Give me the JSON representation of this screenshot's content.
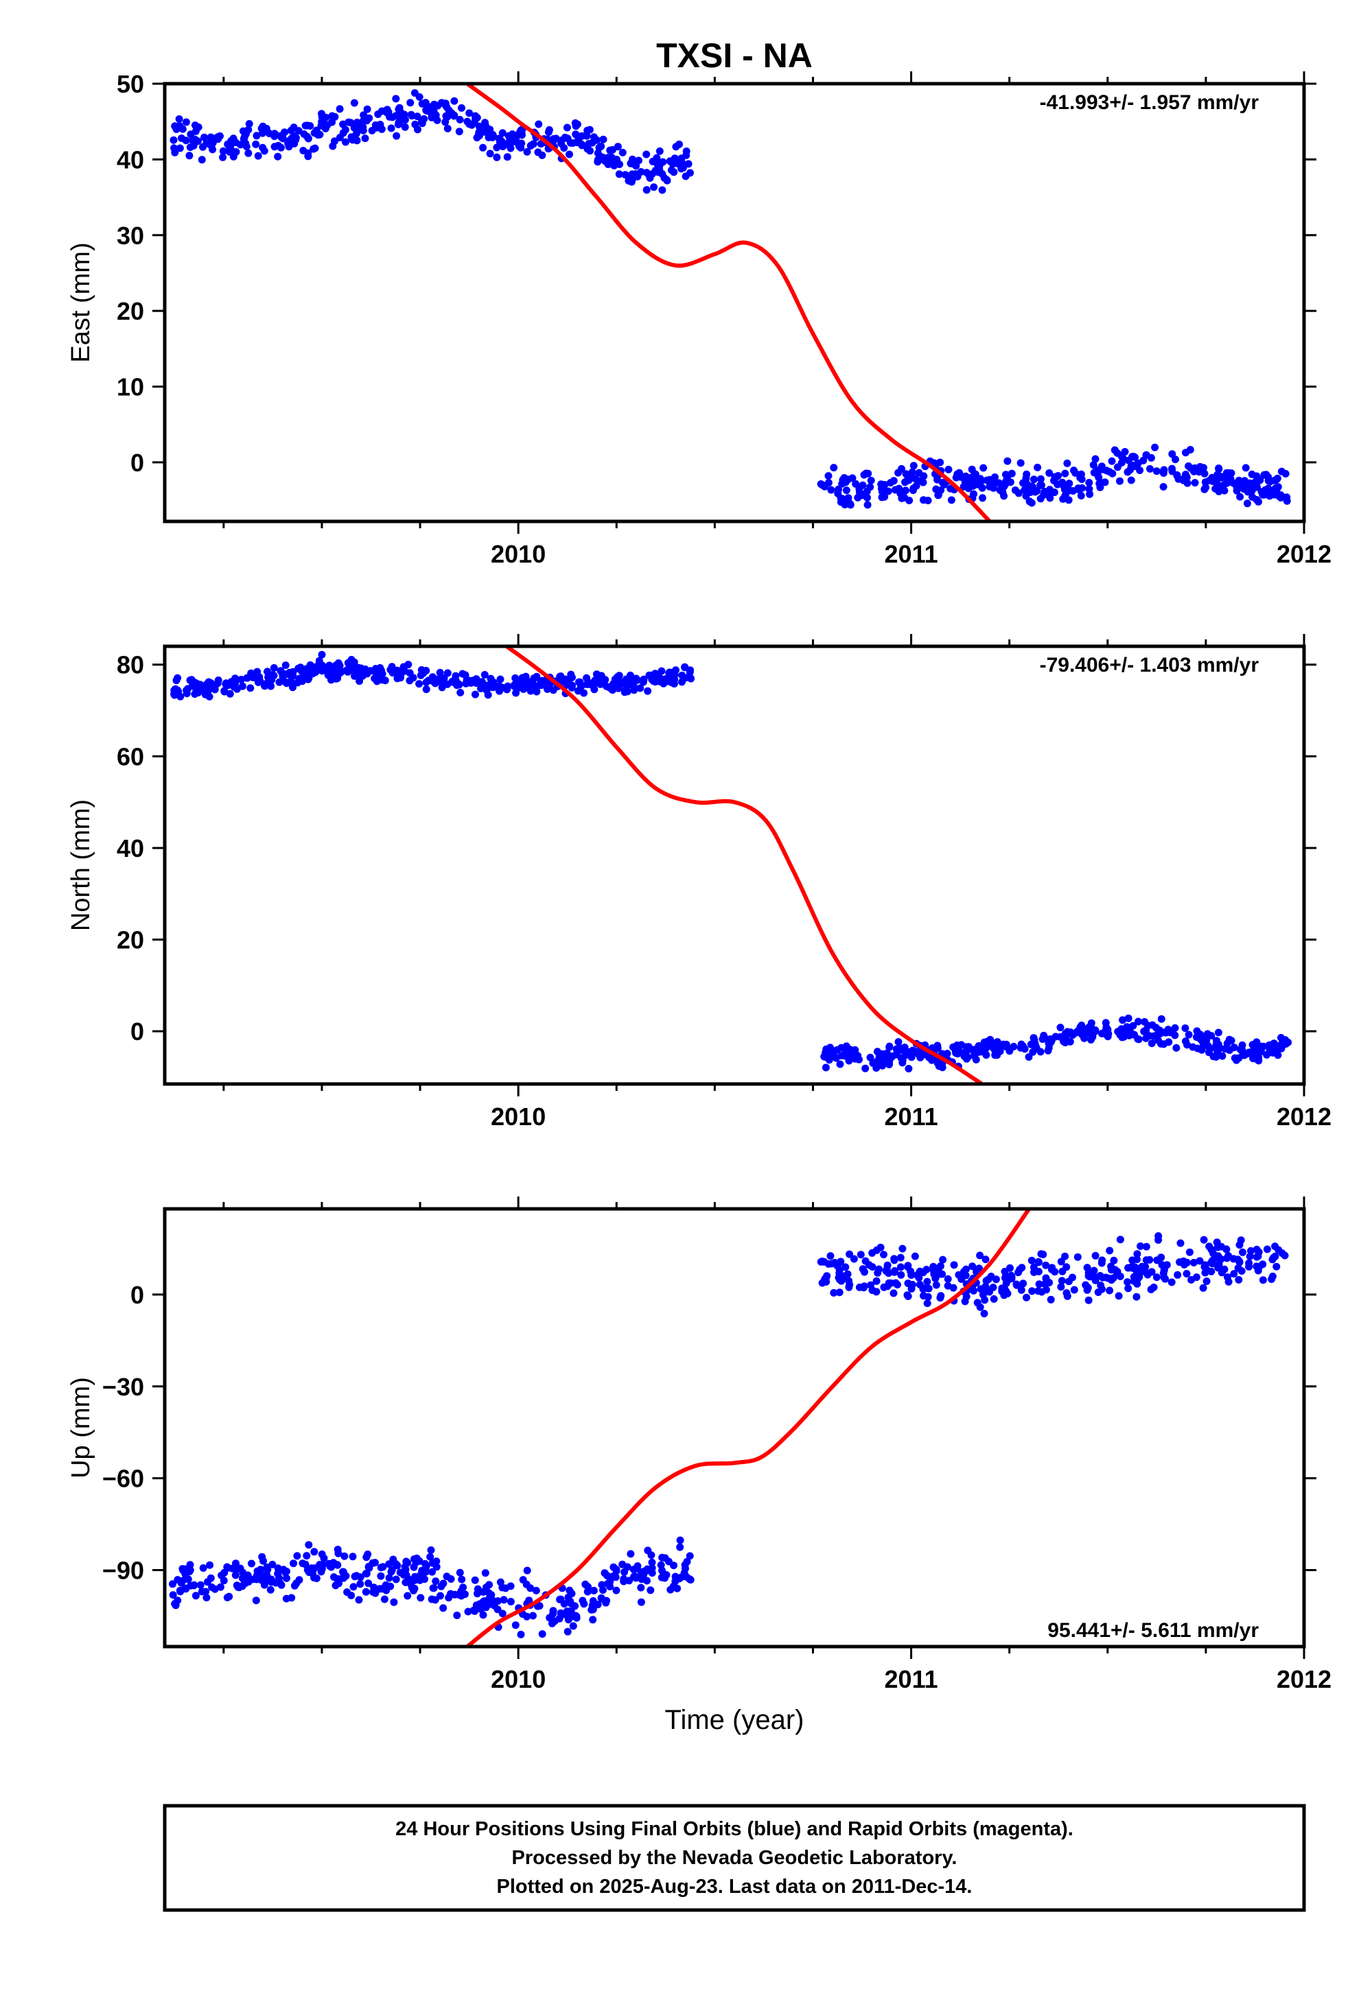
{
  "chart_data": {
    "title": "TXSI - NA",
    "colors": {
      "data": "#0000ff",
      "model": "#ff0000",
      "axes": "#000000"
    },
    "xlabel": "Time (year)",
    "xlim": [
      2009.1,
      2012.0
    ],
    "xticks": [
      2010,
      2011,
      2012
    ],
    "xtick_labels": [
      "2010",
      "2011",
      "2012"
    ],
    "grid": false,
    "panels": [
      {
        "type": "scatter",
        "ylabel": "East (mm)",
        "ylim": [
          -7.8,
          50
        ],
        "yticks": [
          0,
          10,
          20,
          30,
          40,
          50
        ],
        "ytick_labels": [
          "0",
          "10",
          "20",
          "30",
          "40",
          "50"
        ],
        "rate_text": "-41.993+/- 1.957 mm/yr",
        "rate_pos": "top-right",
        "series": [
          {
            "type": "scatter",
            "segments": [
              {
                "x_range": [
                  2009.12,
                  2010.44
                ],
                "noise": 1.2,
                "trend": [
                  [
                    2009.12,
                    43.5
                  ],
                  [
                    2009.25,
                    42.0
                  ],
                  [
                    2009.4,
                    42.5
                  ],
                  [
                    2009.55,
                    44.0
                  ],
                  [
                    2009.65,
                    45.0
                  ],
                  [
                    2009.78,
                    46.5
                  ],
                  [
                    2009.88,
                    45.0
                  ],
                  [
                    2009.97,
                    42.0
                  ],
                  [
                    2010.05,
                    42.5
                  ],
                  [
                    2010.15,
                    43.5
                  ],
                  [
                    2010.25,
                    40.0
                  ],
                  [
                    2010.3,
                    38.5
                  ],
                  [
                    2010.44,
                    39.5
                  ]
                ]
              },
              {
                "x_range": [
                  2010.77,
                  2011.96
                ],
                "noise": 1.2,
                "trend": [
                  [
                    2010.77,
                    -3.5
                  ],
                  [
                    2010.9,
                    -4.0
                  ],
                  [
                    2011.0,
                    -3.0
                  ],
                  [
                    2011.1,
                    -2.5
                  ],
                  [
                    2011.2,
                    -2.5
                  ],
                  [
                    2011.35,
                    -3.5
                  ],
                  [
                    2011.45,
                    -2.5
                  ],
                  [
                    2011.55,
                    0.0
                  ],
                  [
                    2011.65,
                    -0.5
                  ],
                  [
                    2011.75,
                    -1.5
                  ],
                  [
                    2011.85,
                    -3.0
                  ],
                  [
                    2011.96,
                    -3.5
                  ]
                ]
              }
            ]
          },
          {
            "type": "line",
            "x": [
              2009.87,
              2009.95,
              2010.0,
              2010.1,
              2010.2,
              2010.3,
              2010.4,
              2010.5,
              2010.58,
              2010.66,
              2010.75,
              2010.85,
              2010.95,
              2011.05,
              2011.12,
              2011.2
            ],
            "y": [
              50,
              47,
              45,
              41,
              35,
              29,
              26,
              27.5,
              29,
              26,
              17,
              8,
              3,
              -0.5,
              -3.5,
              -7.8
            ]
          }
        ]
      },
      {
        "type": "scatter",
        "ylabel": "North (mm)",
        "ylim": [
          -11.5,
          84
        ],
        "yticks": [
          0,
          20,
          40,
          60,
          80
        ],
        "ytick_labels": [
          "0",
          "20",
          "40",
          "60",
          "80"
        ],
        "rate_text": "-79.406+/- 1.403 mm/yr",
        "rate_pos": "top-right",
        "series": [
          {
            "type": "scatter",
            "segments": [
              {
                "x_range": [
                  2009.12,
                  2010.44
                ],
                "noise": 1.1,
                "trend": [
                  [
                    2009.12,
                    74.5
                  ],
                  [
                    2009.3,
                    76.0
                  ],
                  [
                    2009.5,
                    79.0
                  ],
                  [
                    2009.7,
                    78.0
                  ],
                  [
                    2009.9,
                    75.5
                  ],
                  [
                    2010.1,
                    76.0
                  ],
                  [
                    2010.3,
                    76.0
                  ],
                  [
                    2010.44,
                    78.0
                  ]
                ]
              },
              {
                "x_range": [
                  2010.77,
                  2011.96
                ],
                "noise": 1.2,
                "trend": [
                  [
                    2010.77,
                    -5.0
                  ],
                  [
                    2010.9,
                    -6.0
                  ],
                  [
                    2011.0,
                    -5.0
                  ],
                  [
                    2011.1,
                    -5.0
                  ],
                  [
                    2011.2,
                    -3.5
                  ],
                  [
                    2011.32,
                    -3.5
                  ],
                  [
                    2011.4,
                    0.0
                  ],
                  [
                    2011.55,
                    0.0
                  ],
                  [
                    2011.7,
                    -1.0
                  ],
                  [
                    2011.85,
                    -5.0
                  ],
                  [
                    2011.96,
                    -3.0
                  ]
                ]
              }
            ]
          },
          {
            "type": "line",
            "x": [
              2009.97,
              2010.05,
              2010.15,
              2010.25,
              2010.35,
              2010.45,
              2010.55,
              2010.63,
              2010.7,
              2010.8,
              2010.9,
              2011.0,
              2011.1,
              2011.18
            ],
            "y": [
              84,
              79,
              72,
              62,
              53,
              50,
              50,
              46,
              35,
              17,
              5,
              -2,
              -7,
              -11.5
            ]
          }
        ]
      },
      {
        "type": "scatter",
        "ylabel": "Up (mm)",
        "ylim": [
          -115,
          28
        ],
        "yticks": [
          -90,
          -60,
          -30,
          0
        ],
        "ytick_labels": [
          "−90",
          "−60",
          "−30",
          "0"
        ],
        "rate_text": "95.441+/- 5.611 mm/yr",
        "rate_pos": "bottom-right",
        "series": [
          {
            "type": "scatter",
            "segments": [
              {
                "x_range": [
                  2009.12,
                  2010.44
                ],
                "noise": 4.0,
                "trend": [
                  [
                    2009.12,
                    -94
                  ],
                  [
                    2009.3,
                    -93
                  ],
                  [
                    2009.5,
                    -90
                  ],
                  [
                    2009.7,
                    -92
                  ],
                  [
                    2009.85,
                    -97
                  ],
                  [
                    2010.0,
                    -101
                  ],
                  [
                    2010.15,
                    -103
                  ],
                  [
                    2010.25,
                    -92
                  ],
                  [
                    2010.35,
                    -90
                  ],
                  [
                    2010.44,
                    -89
                  ]
                ]
              },
              {
                "x_range": [
                  2010.77,
                  2011.96
                ],
                "noise": 4.0,
                "trend": [
                  [
                    2010.77,
                    7
                  ],
                  [
                    2010.9,
                    7
                  ],
                  [
                    2011.1,
                    5
                  ],
                  [
                    2011.2,
                    4
                  ],
                  [
                    2011.35,
                    7
                  ],
                  [
                    2011.5,
                    7
                  ],
                  [
                    2011.65,
                    8
                  ],
                  [
                    2011.8,
                    11
                  ],
                  [
                    2011.96,
                    12
                  ]
                ]
              }
            ]
          },
          {
            "type": "line",
            "x": [
              2009.87,
              2009.95,
              2010.05,
              2010.15,
              2010.25,
              2010.35,
              2010.45,
              2010.55,
              2010.62,
              2010.7,
              2010.8,
              2010.9,
              2011.0,
              2011.1,
              2011.2,
              2011.3
            ],
            "y": [
              -115,
              -107,
              -100,
              -90,
              -76,
              -63,
              -56,
              -55,
              -53,
              -44,
              -30,
              -17,
              -9,
              -2,
              10,
              28
            ]
          }
        ]
      }
    ]
  },
  "footer": {
    "lines": [
      "24 Hour Positions Using Final Orbits (blue) and Rapid Orbits (magenta).",
      "Processed by the Nevada Geodetic Laboratory.",
      "Plotted on 2025-Aug-23. Last data on 2011-Dec-14."
    ]
  }
}
